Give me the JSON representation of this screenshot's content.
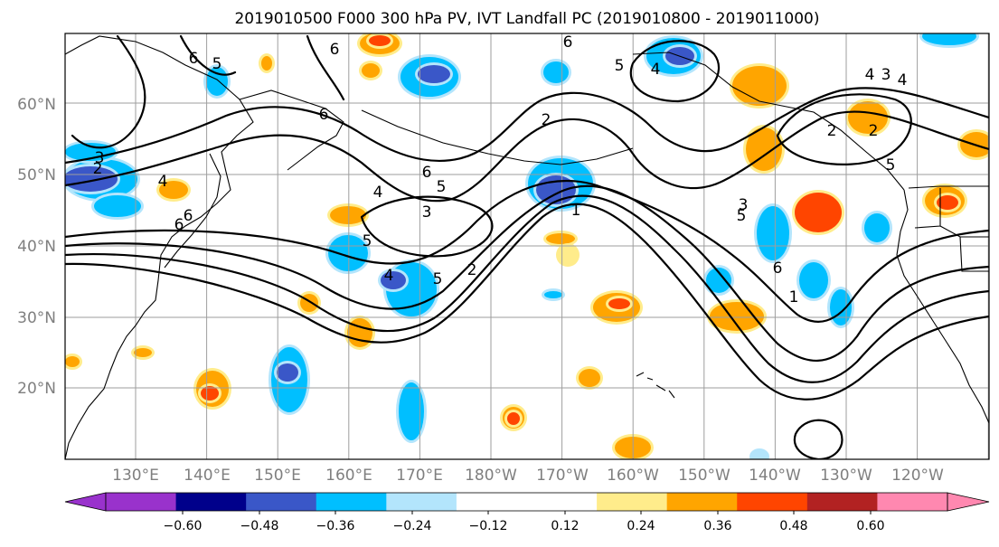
{
  "title": "2019010500 F000 300 hPa PV, IVT Landfall PC (2019010800 - 2019011000)",
  "map": {
    "lat_labels": [
      "60°N",
      "50°N",
      "40°N",
      "30°N",
      "20°N"
    ],
    "lon_labels": [
      "130°E",
      "140°E",
      "150°E",
      "160°E",
      "170°E",
      "180°W",
      "170°W",
      "160°W",
      "150°W",
      "140°W",
      "130°W",
      "120°W"
    ],
    "contour_labels": [
      "6",
      "5",
      "6",
      "6",
      "6",
      "4",
      "3",
      "2",
      "6",
      "5",
      "4",
      "3",
      "6",
      "5",
      "4",
      "5",
      "2",
      "1",
      "2",
      "3",
      "4",
      "5",
      "6",
      "5",
      "6",
      "4",
      "2",
      "1",
      "3",
      "4",
      "2",
      "5"
    ],
    "fill_colors": {
      "neg_strong": "#3a57c8",
      "neg_mid": "#00bfff",
      "neg_weak": "#b3e5fc",
      "pos_weak": "#ffec8b",
      "pos_mid": "#ffa500",
      "pos_strong": "#ff4500"
    }
  },
  "colorbar": {
    "colors": [
      "#9932cc",
      "#00008b",
      "#3a57c8",
      "#00bfff",
      "#b3e5fc",
      "#ffffff",
      "#ffffff",
      "#ffec8b",
      "#ffa500",
      "#ff4500",
      "#b22222",
      "#ff88b0"
    ],
    "extend_low_color": "#9932cc",
    "extend_high_color": "#ff88b0",
    "labels": [
      "−0.60",
      "−0.48",
      "−0.36",
      "−0.24",
      "−0.12",
      "0.12",
      "0.24",
      "0.36",
      "0.48",
      "0.60"
    ]
  }
}
